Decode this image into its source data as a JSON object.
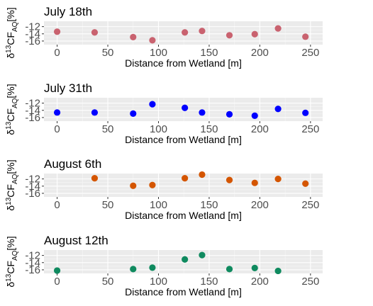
{
  "chart_data": [
    {
      "type": "scatter",
      "title": "July 18th",
      "xlabel": "Distance from Wetland [m]",
      "ylabel": {
        "prefix": "δ",
        "sup": "13",
        "main": "CF",
        "sub": "AQ",
        "unit": "[%]"
      },
      "color": "#c9626f",
      "x_ticks": [
        "0",
        "50",
        "100",
        "150",
        "200",
        "250"
      ],
      "y_ticks": [
        "-12",
        "-14",
        "-16"
      ],
      "xlim": [
        -13,
        262
      ],
      "ylim": [
        -17,
        -10.5
      ],
      "grid": true,
      "points": [
        {
          "x": 0,
          "y": -13.4
        },
        {
          "x": 37,
          "y": -13.6
        },
        {
          "x": 75,
          "y": -14.9
        },
        {
          "x": 94,
          "y": -15.8
        },
        {
          "x": 126,
          "y": -13.6
        },
        {
          "x": 143,
          "y": -13.2
        },
        {
          "x": 170,
          "y": -14.4
        },
        {
          "x": 195,
          "y": -14.1
        },
        {
          "x": 218,
          "y": -12.5
        },
        {
          "x": 245,
          "y": -14.8
        }
      ]
    },
    {
      "type": "scatter",
      "title": "July 31th",
      "xlabel": "Distance from Wetland [m]",
      "ylabel": {
        "prefix": "δ",
        "sup": "13",
        "main": "CF",
        "sub": "AQ",
        "unit": "[%]"
      },
      "color": "#0000ff",
      "x_ticks": [
        "0",
        "50",
        "100",
        "150",
        "200",
        "250"
      ],
      "y_ticks": [
        "-12",
        "-14",
        "-16"
      ],
      "xlim": [
        -13,
        262
      ],
      "ylim": [
        -17,
        -10.5
      ],
      "grid": true,
      "points": [
        {
          "x": 0,
          "y": -14.6
        },
        {
          "x": 37,
          "y": -14.6
        },
        {
          "x": 75,
          "y": -14.9
        },
        {
          "x": 94,
          "y": -12.3
        },
        {
          "x": 126,
          "y": -13.3
        },
        {
          "x": 143,
          "y": -14.6
        },
        {
          "x": 170,
          "y": -15.1
        },
        {
          "x": 195,
          "y": -15.5
        },
        {
          "x": 218,
          "y": -13.6
        },
        {
          "x": 245,
          "y": -14.7
        }
      ]
    },
    {
      "type": "scatter",
      "title": "August 6th",
      "xlabel": "Distance from Wetland [m]",
      "ylabel": {
        "prefix": "δ",
        "sup": "13",
        "main": "CF",
        "sub": "AQ",
        "unit": "[%]"
      },
      "color": "#d45500",
      "x_ticks": [
        "0",
        "50",
        "100",
        "150",
        "200",
        "250"
      ],
      "y_ticks": [
        "-12",
        "-14",
        "-16"
      ],
      "xlim": [
        -13,
        262
      ],
      "ylim": [
        -17,
        -10.5
      ],
      "grid": true,
      "points": [
        {
          "x": 37,
          "y": -11.8
        },
        {
          "x": 75,
          "y": -13.9
        },
        {
          "x": 94,
          "y": -13.7
        },
        {
          "x": 126,
          "y": -11.8
        },
        {
          "x": 143,
          "y": -10.8
        },
        {
          "x": 170,
          "y": -12.3
        },
        {
          "x": 195,
          "y": -13.1
        },
        {
          "x": 218,
          "y": -12.0
        },
        {
          "x": 245,
          "y": -13.3
        }
      ]
    },
    {
      "type": "scatter",
      "title": "August 12th",
      "xlabel": "Distance from Wetland [m]",
      "ylabel": {
        "prefix": "δ",
        "sup": "13",
        "main": "CF",
        "sub": "AQ",
        "unit": "[%]"
      },
      "color": "#0f8a5f",
      "x_ticks": [
        "0",
        "50",
        "100",
        "150",
        "200",
        "250"
      ],
      "y_ticks": [
        "-12",
        "-14",
        "-16"
      ],
      "xlim": [
        -13,
        262
      ],
      "ylim": [
        -17,
        -10.5
      ],
      "grid": true,
      "points": [
        {
          "x": 0,
          "y": -16.2
        },
        {
          "x": 75,
          "y": -15.8
        },
        {
          "x": 94,
          "y": -15.4
        },
        {
          "x": 126,
          "y": -13.1,
          "err": 0.9
        },
        {
          "x": 143,
          "y": -11.9
        },
        {
          "x": 170,
          "y": -15.8
        },
        {
          "x": 195,
          "y": -15.5
        },
        {
          "x": 218,
          "y": -16.3
        }
      ]
    }
  ]
}
